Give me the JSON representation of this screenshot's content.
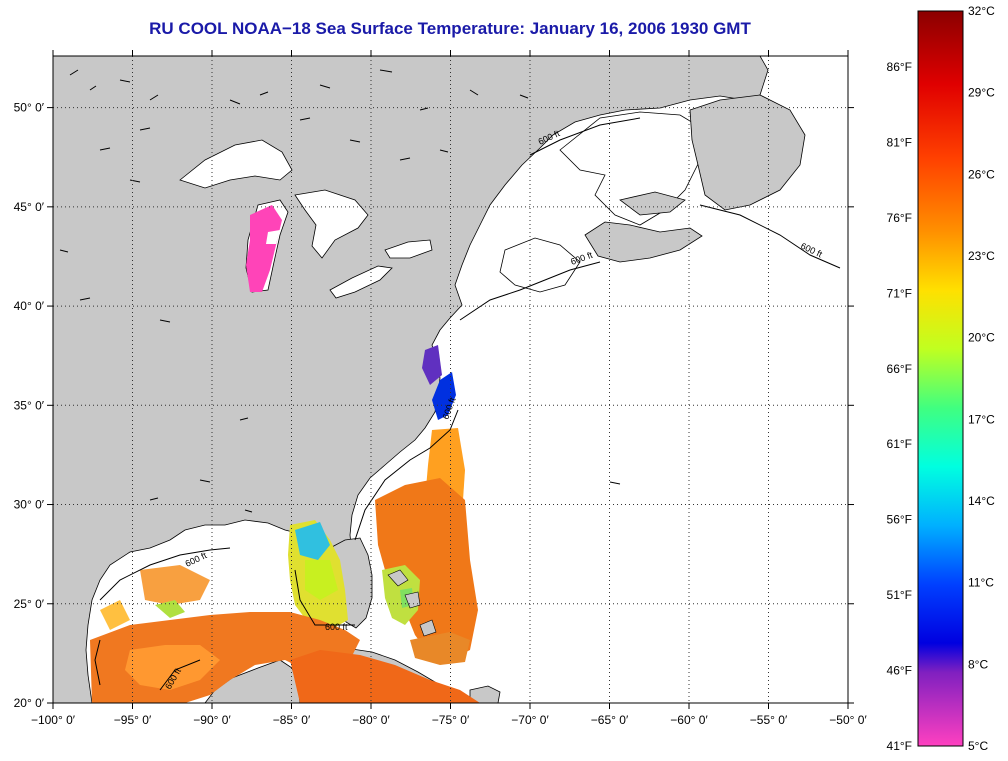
{
  "title": "RU COOL  NOAA−18  Sea Surface Temperature:  January 16, 2006 1930 GMT",
  "map": {
    "lon_range": [
      -100,
      -50
    ],
    "lat_range": [
      20,
      52.6
    ],
    "lon_ticks": [
      {
        "value": -100,
        "label": "−100° 0′"
      },
      {
        "value": -95,
        "label": "−95° 0′"
      },
      {
        "value": -90,
        "label": "−90° 0′"
      },
      {
        "value": -85,
        "label": "−85° 0′"
      },
      {
        "value": -80,
        "label": "−80° 0′"
      },
      {
        "value": -75,
        "label": "−75° 0′"
      },
      {
        "value": -70,
        "label": "−70° 0′"
      },
      {
        "value": -65,
        "label": "−65° 0′"
      },
      {
        "value": -60,
        "label": "−60° 0′"
      },
      {
        "value": -55,
        "label": "−55° 0′"
      },
      {
        "value": -50,
        "label": "−50° 0′"
      }
    ],
    "lat_ticks": [
      {
        "value": 20,
        "label": "20° 0′"
      },
      {
        "value": 25,
        "label": "25° 0′"
      },
      {
        "value": 30,
        "label": "30° 0′"
      },
      {
        "value": 35,
        "label": "35° 0′"
      },
      {
        "value": 40,
        "label": "40° 0′"
      },
      {
        "value": 45,
        "label": "45° 0′"
      },
      {
        "value": 50,
        "label": "50° 0′"
      }
    ],
    "contour_label": "600 ft",
    "colors": {
      "land": "#c8c8c8",
      "water_no_data": "#ffffff",
      "grid": "#000000"
    }
  },
  "colorbar": {
    "celsius_labels": [
      "32°C",
      "29°C",
      "26°C",
      "23°C",
      "20°C",
      "17°C",
      "14°C",
      "11°C",
      "8°C",
      "5°C"
    ],
    "fahrenheit_labels": [
      "86°F",
      "81°F",
      "76°F",
      "71°F",
      "66°F",
      "61°F",
      "56°F",
      "51°F",
      "46°F",
      "41°F"
    ],
    "colors": [
      "#8b0000",
      "#ff0000",
      "#ff8000",
      "#ffff00",
      "#80ff00",
      "#00ffc0",
      "#00a0ff",
      "#0000ff",
      "#8000c0",
      "#ff40c0"
    ]
  }
}
